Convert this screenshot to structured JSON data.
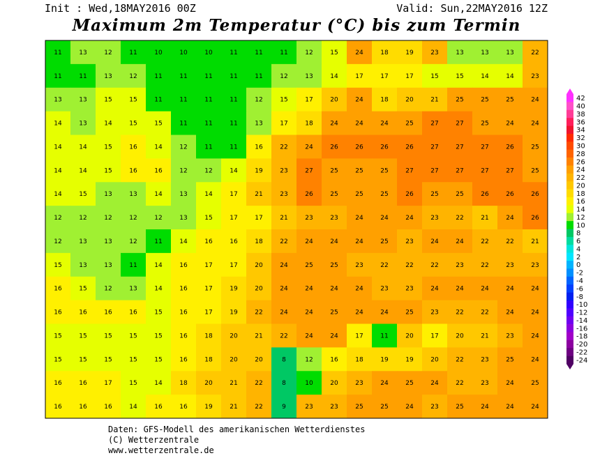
{
  "header": {
    "init": "Init : Wed,18MAY2016 00Z",
    "valid": "Valid: Sun,22MAY2016 12Z",
    "title": "Maximum 2m Temperatur (°C) bis zum Termin"
  },
  "map": {
    "rows": [
      [
        11,
        13,
        12,
        11,
        10,
        10,
        10,
        11,
        11,
        11,
        12,
        15,
        24,
        18,
        19,
        23,
        13,
        13,
        13,
        22
      ],
      [
        11,
        11,
        13,
        12,
        11,
        11,
        11,
        11,
        11,
        12,
        13,
        14,
        17,
        17,
        17,
        15,
        15,
        14,
        14,
        23
      ],
      [
        13,
        13,
        15,
        15,
        11,
        11,
        11,
        11,
        12,
        15,
        17,
        20,
        24,
        18,
        20,
        21,
        25,
        25,
        25,
        24
      ],
      [
        14,
        13,
        14,
        15,
        15,
        11,
        11,
        11,
        13,
        17,
        18,
        24,
        24,
        24,
        25,
        27,
        27,
        25,
        24,
        24
      ],
      [
        14,
        14,
        15,
        16,
        14,
        12,
        11,
        11,
        16,
        22,
        24,
        26,
        26,
        26,
        26,
        27,
        27,
        27,
        26,
        25
      ],
      [
        14,
        14,
        15,
        16,
        16,
        12,
        12,
        14,
        19,
        23,
        27,
        25,
        25,
        25,
        27,
        27,
        27,
        27,
        27,
        25
      ],
      [
        14,
        15,
        13,
        13,
        14,
        13,
        14,
        17,
        21,
        23,
        26,
        25,
        25,
        25,
        26,
        25,
        25,
        26,
        26,
        26
      ],
      [
        12,
        12,
        12,
        12,
        12,
        13,
        15,
        17,
        17,
        21,
        23,
        23,
        24,
        24,
        24,
        23,
        22,
        21,
        24,
        26
      ],
      [
        12,
        13,
        13,
        12,
        11,
        14,
        16,
        16,
        18,
        22,
        24,
        24,
        24,
        25,
        23,
        24,
        24,
        22,
        22,
        21
      ],
      [
        15,
        13,
        13,
        11,
        14,
        16,
        17,
        17,
        20,
        24,
        25,
        25,
        23,
        22,
        22,
        22,
        23,
        22,
        23,
        23
      ],
      [
        16,
        15,
        12,
        13,
        14,
        16,
        17,
        19,
        20,
        24,
        24,
        24,
        24,
        23,
        23,
        24,
        24,
        24,
        24,
        24
      ],
      [
        16,
        16,
        16,
        16,
        15,
        16,
        17,
        19,
        22,
        24,
        24,
        25,
        24,
        24,
        25,
        23,
        22,
        22,
        24,
        24
      ],
      [
        15,
        15,
        15,
        15,
        15,
        16,
        18,
        20,
        21,
        22,
        24,
        24,
        17,
        11,
        20,
        17,
        20,
        21,
        23,
        24
      ],
      [
        15,
        15,
        15,
        15,
        15,
        16,
        18,
        20,
        20,
        8,
        12,
        16,
        18,
        19,
        19,
        20,
        22,
        23,
        25,
        24
      ],
      [
        16,
        16,
        17,
        15,
        14,
        18,
        20,
        21,
        22,
        8,
        10,
        20,
        23,
        24,
        25,
        24,
        22,
        23,
        24,
        25
      ],
      [
        16,
        16,
        16,
        14,
        16,
        16,
        19,
        21,
        22,
        9,
        23,
        23,
        25,
        25,
        24,
        23,
        25,
        24,
        24,
        24
      ]
    ]
  },
  "legend": {
    "ticks": [
      42,
      40,
      38,
      36,
      34,
      32,
      30,
      28,
      26,
      24,
      22,
      20,
      18,
      16,
      14,
      12,
      10,
      8,
      6,
      4,
      2,
      0,
      -2,
      -4,
      -6,
      -8,
      -10,
      -12,
      -14,
      -16,
      -18,
      -20,
      -22,
      -24
    ],
    "colors": [
      "#ff30ff",
      "#ff50c8",
      "#ff3c96",
      "#ff1e5a",
      "#f0142d",
      "#ff2a00",
      "#ff4b00",
      "#ff6400",
      "#ff8200",
      "#ffa000",
      "#ffb400",
      "#ffc800",
      "#ffdc00",
      "#fff000",
      "#e6ff00",
      "#a0f032",
      "#00dc00",
      "#00c864",
      "#00dca0",
      "#00e6dc",
      "#00e6ff",
      "#00b4ff",
      "#0090ff",
      "#0064ff",
      "#0040ff",
      "#0020f0",
      "#3000ff",
      "#5000ff",
      "#7000f0",
      "#8c00dc",
      "#a000c8",
      "#8c00a0",
      "#6e0082",
      "#500064"
    ]
  },
  "footer": {
    "lines": [
      "Daten: GFS-Modell des amerikanischen Wetterdienstes",
      "(C) Wetterzentrale",
      "www.wetterzentrale.de"
    ]
  }
}
